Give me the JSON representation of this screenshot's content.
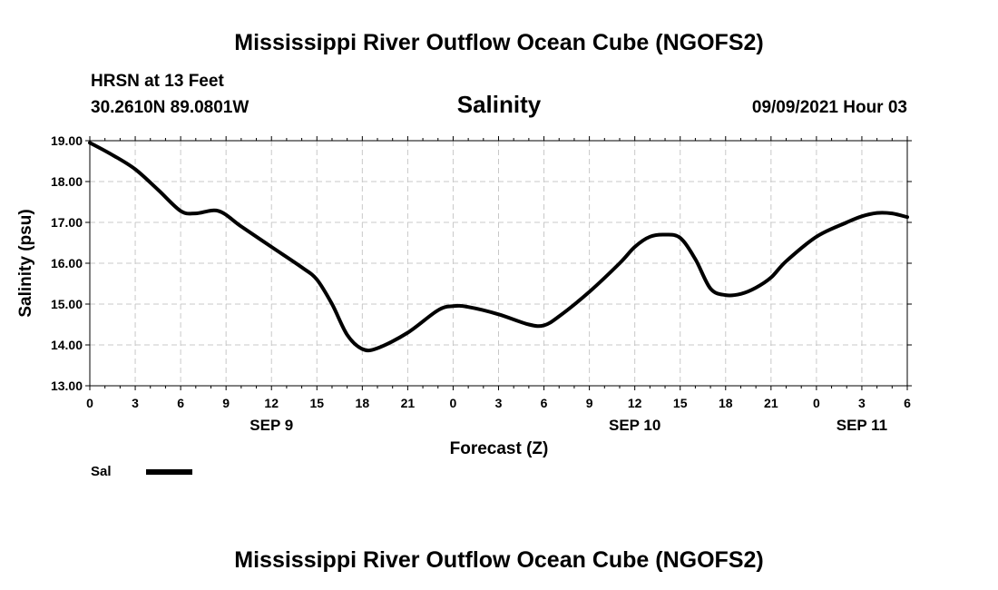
{
  "chart_data": {
    "type": "line",
    "title": "Mississippi River Outflow Ocean Cube (NGOFS2)",
    "footer_title": "Mississippi River Outflow Ocean Cube (NGOFS2)",
    "subtitle": "Salinity",
    "station": "HRSN at 13 Feet",
    "location": "30.2610N  89.0801W",
    "datetime": "09/09/2021 Hour 03",
    "xlabel": "Forecast (Z)",
    "ylabel": "Salinity (psu)",
    "xlim": [
      0,
      54
    ],
    "ylim": [
      13.0,
      19.0
    ],
    "y_ticks": [
      "13.00",
      "14.00",
      "15.00",
      "16.00",
      "17.00",
      "18.00",
      "19.00"
    ],
    "x_tick_hours": [
      0,
      3,
      6,
      9,
      12,
      15,
      18,
      21,
      24,
      27,
      30,
      33,
      36,
      39,
      42,
      45,
      48,
      51,
      54
    ],
    "x_tick_labels": [
      "0",
      "3",
      "6",
      "9",
      "12",
      "15",
      "18",
      "21",
      "0",
      "3",
      "6",
      "9",
      "12",
      "15",
      "18",
      "21",
      "0",
      "3",
      "6"
    ],
    "date_labels": [
      {
        "hour": 12,
        "label": "SEP 9"
      },
      {
        "hour": 36,
        "label": "SEP 10"
      },
      {
        "hour": 51,
        "label": "SEP 11"
      }
    ],
    "grid": true,
    "legend": {
      "label": "Sal",
      "position": "bottom-left"
    },
    "series": [
      {
        "name": "Sal",
        "color": "#000000",
        "x": [
          0,
          1.5,
          3,
          4.5,
          6,
          7,
          8.5,
          10,
          12,
          14,
          15,
          16,
          17,
          18,
          19,
          21,
          23,
          24,
          25,
          27,
          29,
          30,
          31,
          33,
          35,
          36,
          37,
          38,
          39,
          40,
          41,
          42,
          43,
          44,
          45,
          46,
          48,
          50,
          51,
          52,
          53,
          54
        ],
        "y": [
          18.95,
          18.65,
          18.3,
          17.8,
          17.28,
          17.22,
          17.28,
          16.9,
          16.4,
          15.9,
          15.6,
          15.0,
          14.25,
          13.9,
          13.92,
          14.3,
          14.85,
          14.95,
          14.93,
          14.75,
          14.5,
          14.48,
          14.7,
          15.3,
          16.0,
          16.4,
          16.65,
          16.7,
          16.62,
          16.1,
          15.38,
          15.22,
          15.25,
          15.4,
          15.65,
          16.05,
          16.65,
          17.0,
          17.15,
          17.23,
          17.22,
          17.13
        ]
      }
    ]
  }
}
